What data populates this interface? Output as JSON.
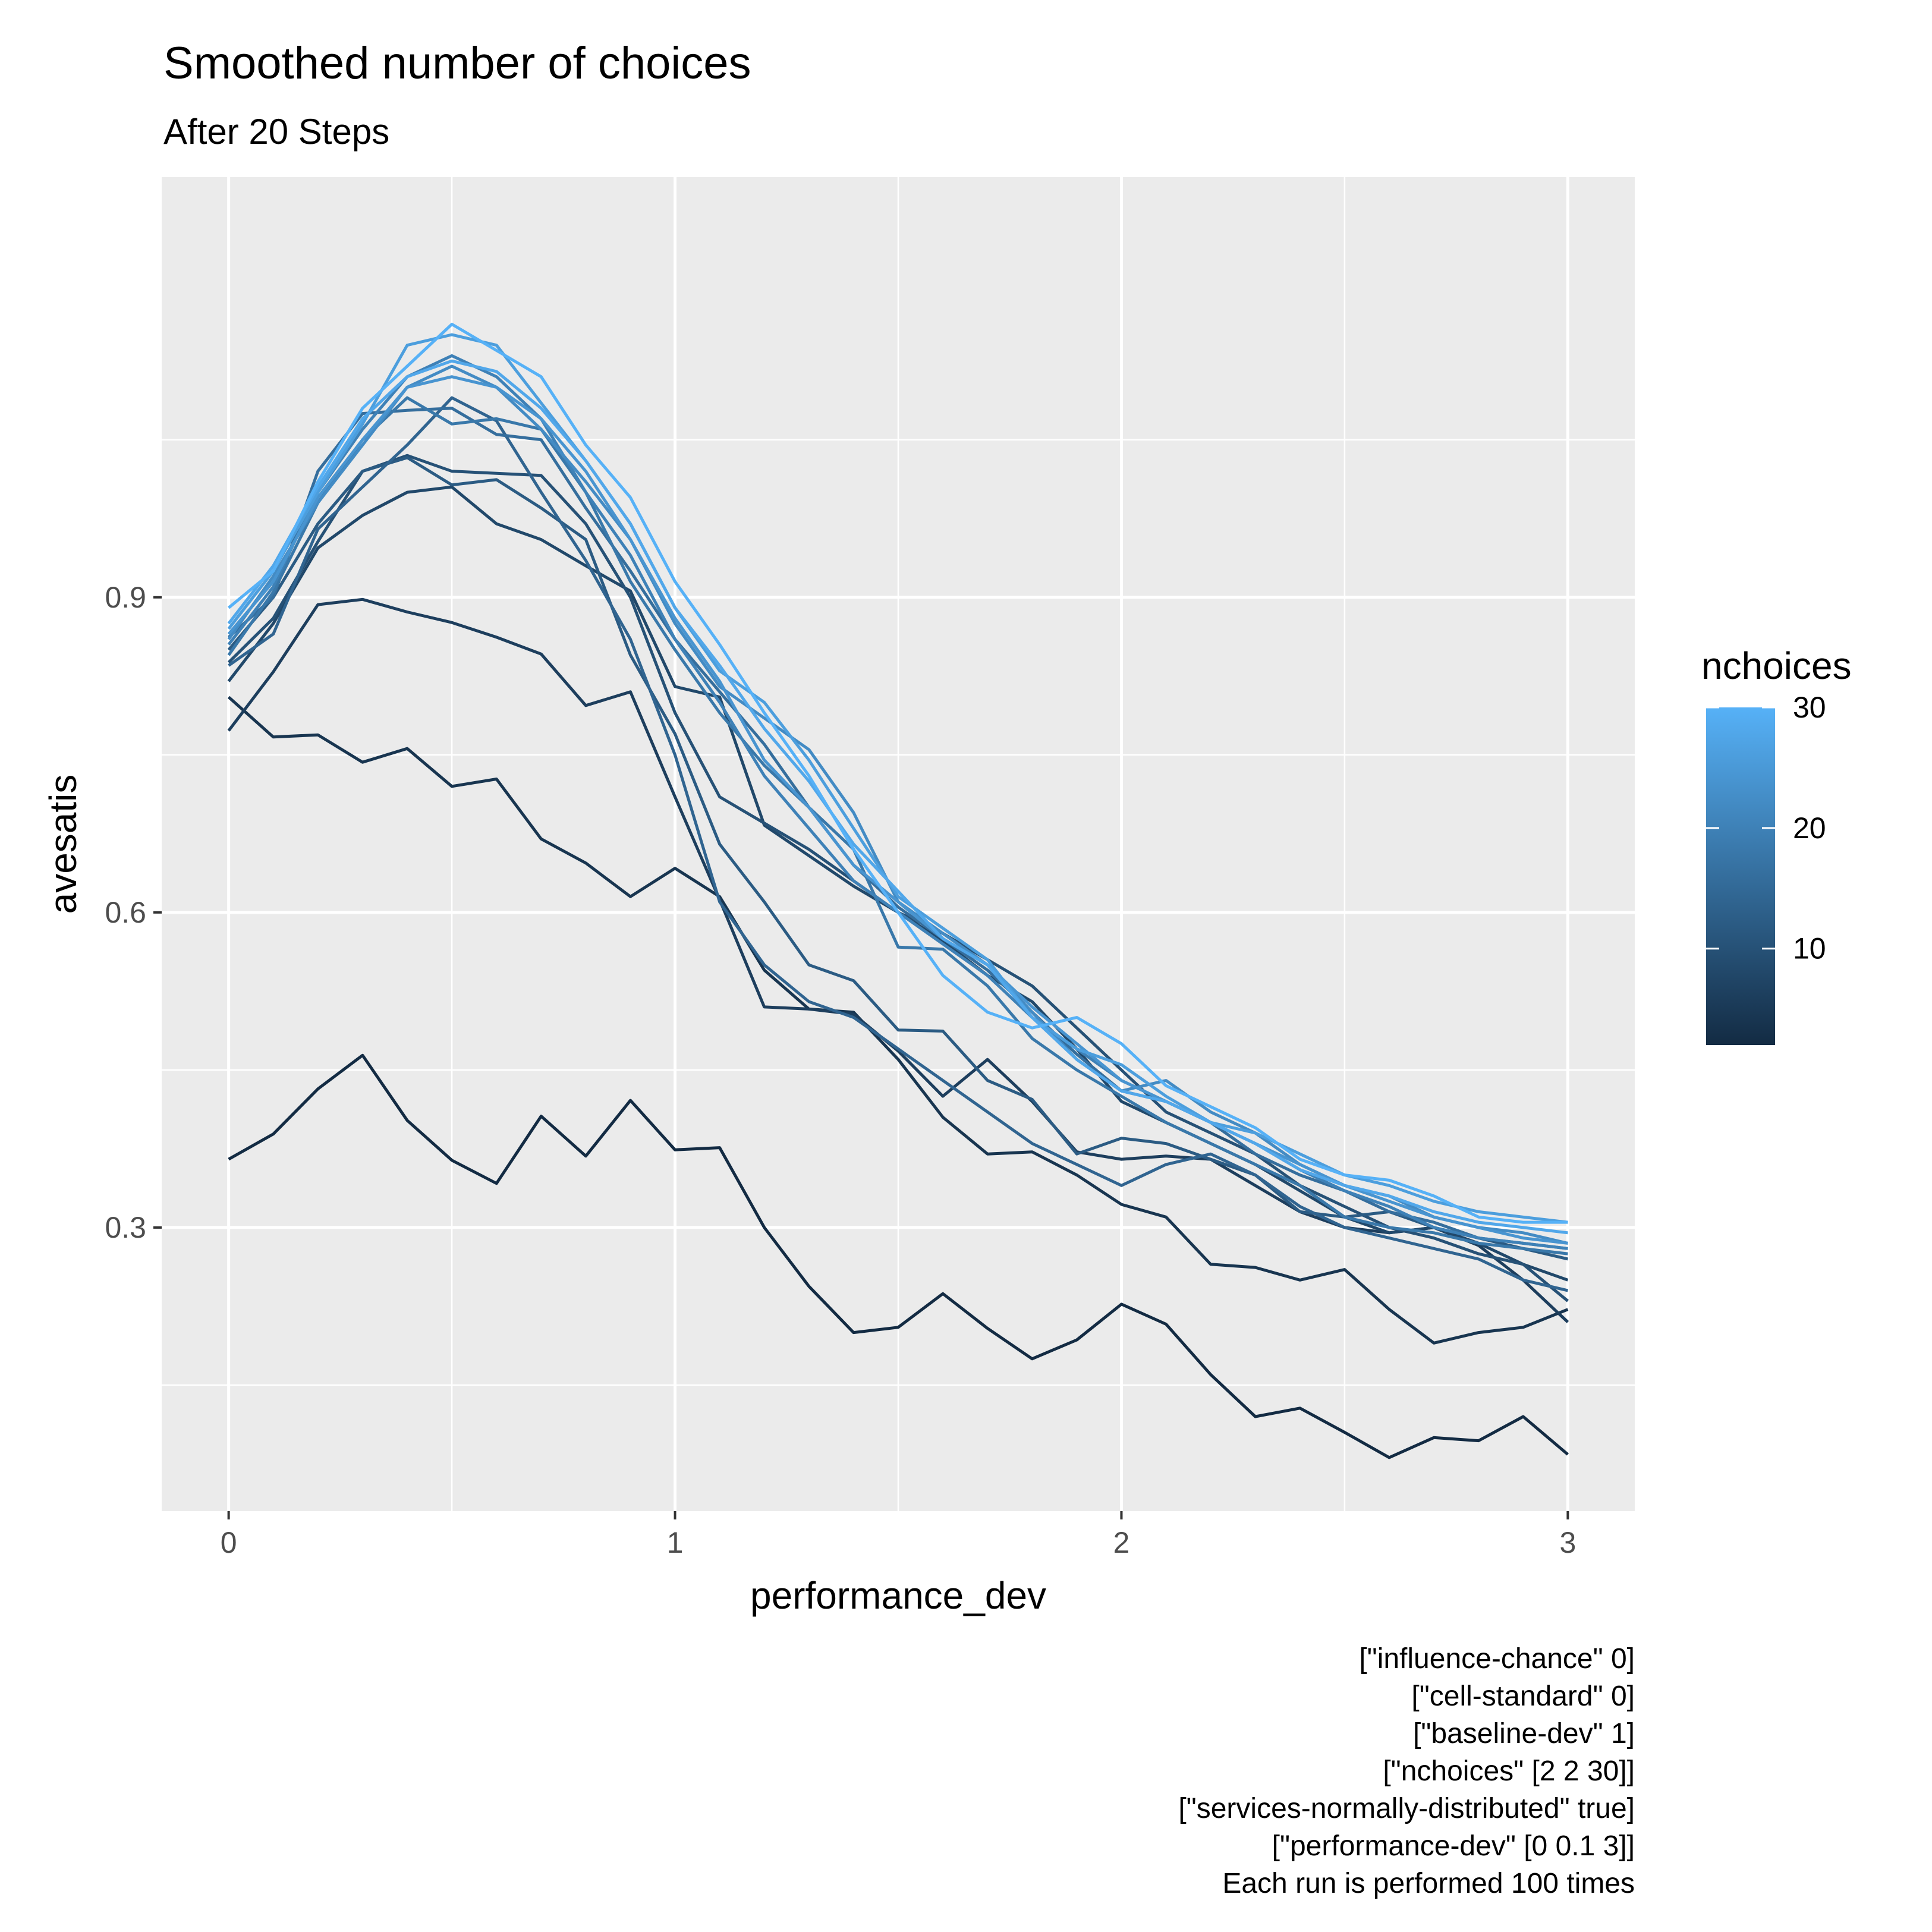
{
  "chart_data": {
    "type": "line",
    "title": "Smoothed number of choices",
    "subtitle": "After 20 Steps",
    "xlabel": "performance_dev",
    "ylabel": "avesatis",
    "xlim": [
      -0.15,
      3.15
    ],
    "ylim": [
      0.03,
      1.3
    ],
    "x_ticks": [
      0,
      1,
      2,
      3
    ],
    "x_tick_labels": [
      "0",
      "1",
      "2",
      "3"
    ],
    "y_ticks": [
      0.3,
      0.6,
      0.9
    ],
    "y_tick_labels": [
      "0.3",
      "0.6",
      "0.9"
    ],
    "grid": true,
    "legend": {
      "title": "nchoices",
      "placement": "right",
      "type": "colorbar",
      "min": 2,
      "max": 30,
      "ticks": [
        10,
        20,
        30
      ],
      "tick_labels": [
        "10",
        "20",
        "30"
      ],
      "color_low": "#132B43",
      "color_high": "#56B1F7"
    },
    "x": [
      0,
      0.1,
      0.2,
      0.3,
      0.4,
      0.5,
      0.6,
      0.7,
      0.8,
      0.9,
      1.0,
      1.1,
      1.2,
      1.3,
      1.4,
      1.5,
      1.6,
      1.7,
      1.8,
      1.9,
      2.0,
      2.1,
      2.2,
      2.3,
      2.4,
      2.5,
      2.6,
      2.7,
      2.8,
      2.9,
      3.0
    ],
    "series": [
      {
        "nchoices": 2,
        "values": [
          0.365,
          0.389,
          0.432,
          0.464,
          0.402,
          0.364,
          0.342,
          0.406,
          0.368,
          0.421,
          0.374,
          0.376,
          0.3,
          0.244,
          0.2,
          0.205,
          0.237,
          0.204,
          0.175,
          0.193,
          0.227,
          0.208,
          0.16,
          0.12,
          0.128,
          0.105,
          0.081,
          0.1,
          0.097,
          0.12,
          0.084
        ]
      },
      {
        "nchoices": 4,
        "values": [
          0.805,
          0.767,
          0.769,
          0.743,
          0.756,
          0.72,
          0.727,
          0.67,
          0.647,
          0.615,
          0.642,
          0.615,
          0.545,
          0.508,
          0.505,
          0.46,
          0.405,
          0.37,
          0.372,
          0.35,
          0.322,
          0.31,
          0.265,
          0.262,
          0.25,
          0.26,
          0.222,
          0.19,
          0.2,
          0.205,
          0.222
        ]
      },
      {
        "nchoices": 6,
        "values": [
          0.773,
          0.829,
          0.893,
          0.898,
          0.886,
          0.876,
          0.862,
          0.846,
          0.797,
          0.81,
          0.71,
          0.612,
          0.51,
          0.508,
          0.503,
          0.468,
          0.425,
          0.46,
          0.42,
          0.372,
          0.365,
          0.368,
          0.365,
          0.34,
          0.315,
          0.3,
          0.295,
          0.3,
          0.283,
          0.25,
          0.21
        ]
      },
      {
        "nchoices": 8,
        "values": [
          0.82,
          0.875,
          0.947,
          0.978,
          1.0,
          1.005,
          0.97,
          0.955,
          0.93,
          0.906,
          0.815,
          0.805,
          0.683,
          0.654,
          0.625,
          0.6,
          0.573,
          0.54,
          0.515,
          0.47,
          0.42,
          0.4,
          0.38,
          0.36,
          0.335,
          0.31,
          0.295,
          0.3,
          0.285,
          0.265,
          0.25
        ]
      },
      {
        "nchoices": 10,
        "values": [
          0.838,
          0.88,
          0.953,
          1.02,
          1.035,
          1.02,
          1.018,
          1.016,
          0.97,
          0.9,
          0.79,
          0.71,
          0.685,
          0.66,
          0.63,
          0.6,
          0.58,
          0.555,
          0.53,
          0.49,
          0.45,
          0.41,
          0.39,
          0.37,
          0.34,
          0.32,
          0.3,
          0.29,
          0.275,
          0.265,
          0.23
        ]
      },
      {
        "nchoices": 12,
        "values": [
          0.85,
          0.9,
          0.97,
          1.02,
          1.033,
          1.007,
          1.012,
          0.985,
          0.955,
          0.845,
          0.77,
          0.665,
          0.61,
          0.55,
          0.535,
          0.488,
          0.487,
          0.44,
          0.422,
          0.37,
          0.385,
          0.38,
          0.365,
          0.35,
          0.315,
          0.31,
          0.315,
          0.3,
          0.29,
          0.28,
          0.27
        ]
      },
      {
        "nchoices": 14,
        "values": [
          0.835,
          0.865,
          0.965,
          1.005,
          1.045,
          1.09,
          1.068,
          1.0,
          0.935,
          0.86,
          0.75,
          0.61,
          0.55,
          0.515,
          0.5,
          0.47,
          0.44,
          0.41,
          0.38,
          0.36,
          0.34,
          0.36,
          0.37,
          0.35,
          0.32,
          0.3,
          0.29,
          0.28,
          0.27,
          0.25,
          0.24
        ]
      },
      {
        "nchoices": 16,
        "values": [
          0.862,
          0.9,
          1.02,
          1.075,
          1.078,
          1.08,
          1.055,
          1.05,
          0.985,
          0.925,
          0.86,
          0.81,
          0.76,
          0.7,
          0.645,
          0.605,
          0.575,
          0.545,
          0.505,
          0.465,
          0.43,
          0.42,
          0.4,
          0.37,
          0.35,
          0.335,
          0.315,
          0.305,
          0.29,
          0.285,
          0.28
        ]
      },
      {
        "nchoices": 18,
        "values": [
          0.845,
          0.905,
          0.99,
          1.05,
          1.09,
          1.065,
          1.07,
          1.06,
          1.0,
          0.915,
          0.85,
          0.79,
          0.74,
          0.7,
          0.66,
          0.567,
          0.565,
          0.53,
          0.48,
          0.45,
          0.425,
          0.4,
          0.38,
          0.36,
          0.34,
          0.31,
          0.3,
          0.295,
          0.285,
          0.28,
          0.275
        ]
      },
      {
        "nchoices": 20,
        "values": [
          0.855,
          0.91,
          1.0,
          1.06,
          1.11,
          1.13,
          1.11,
          1.07,
          1.0,
          0.94,
          0.86,
          0.8,
          0.73,
          0.68,
          0.63,
          0.6,
          0.57,
          0.54,
          0.5,
          0.47,
          0.44,
          0.42,
          0.4,
          0.38,
          0.355,
          0.335,
          0.32,
          0.3,
          0.29,
          0.285,
          0.28
        ]
      },
      {
        "nchoices": 22,
        "values": [
          0.86,
          0.92,
          0.99,
          1.045,
          1.1,
          1.12,
          1.1,
          1.06,
          1.01,
          0.955,
          0.875,
          0.815,
          0.785,
          0.755,
          0.695,
          0.61,
          0.58,
          0.55,
          0.505,
          0.46,
          0.43,
          0.44,
          0.41,
          0.39,
          0.36,
          0.34,
          0.33,
          0.31,
          0.3,
          0.295,
          0.285
        ]
      },
      {
        "nchoices": 24,
        "values": [
          0.865,
          0.915,
          0.995,
          1.05,
          1.1,
          1.11,
          1.1,
          1.07,
          1.02,
          0.955,
          0.88,
          0.82,
          0.745,
          0.7,
          0.645,
          0.61,
          0.575,
          0.55,
          0.51,
          0.475,
          0.44,
          0.42,
          0.4,
          0.38,
          0.36,
          0.34,
          0.325,
          0.31,
          0.3,
          0.29,
          0.285
        ]
      },
      {
        "nchoices": 26,
        "values": [
          0.87,
          0.925,
          1.0,
          1.065,
          1.14,
          1.15,
          1.14,
          1.085,
          1.03,
          0.97,
          0.89,
          0.83,
          0.8,
          0.745,
          0.68,
          0.615,
          0.585,
          0.555,
          0.5,
          0.47,
          0.455,
          0.425,
          0.4,
          0.39,
          0.37,
          0.35,
          0.34,
          0.325,
          0.315,
          0.31,
          0.305
        ]
      },
      {
        "nchoices": 28,
        "values": [
          0.875,
          0.93,
          1.005,
          1.07,
          1.11,
          1.125,
          1.115,
          1.08,
          1.03,
          0.97,
          0.89,
          0.835,
          0.775,
          0.725,
          0.665,
          0.62,
          0.575,
          0.55,
          0.5,
          0.46,
          0.43,
          0.42,
          0.4,
          0.38,
          0.355,
          0.34,
          0.33,
          0.315,
          0.305,
          0.3,
          0.295
        ]
      },
      {
        "nchoices": 30,
        "values": [
          0.89,
          0.925,
          1.01,
          1.08,
          1.12,
          1.16,
          1.135,
          1.11,
          1.045,
          0.995,
          0.915,
          0.855,
          0.79,
          0.73,
          0.66,
          0.6,
          0.54,
          0.505,
          0.49,
          0.5,
          0.475,
          0.435,
          0.415,
          0.395,
          0.365,
          0.35,
          0.345,
          0.33,
          0.31,
          0.305,
          0.305
        ]
      }
    ],
    "caption": [
      "[\"influence-chance\" 0]",
      "[\"cell-standard\" 0]",
      "[\"baseline-dev\" 1]",
      "[\"nchoices\" [2 2 30]]",
      "[\"services-normally-distributed\" true]",
      "[\"performance-dev\" [0 0.1 3]]",
      "Each run is performed 100 times"
    ]
  }
}
